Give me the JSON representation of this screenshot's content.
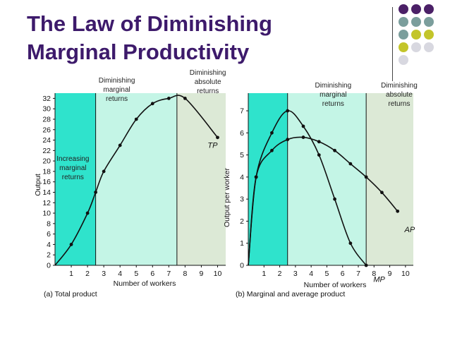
{
  "slide": {
    "title_line1": "The Law of Diminishing",
    "title_line2": "Marginal Productivity",
    "accent_colors": {
      "purple": "#4b2067",
      "teal": "#7b9e9c",
      "olive": "#c3c52a",
      "gray": "#d8d8e0",
      "title": "#3d1a6b"
    },
    "dot_pattern": [
      [
        "purple",
        "purple",
        "purple"
      ],
      [
        "teal",
        "teal",
        "teal"
      ],
      [
        "teal",
        "olive",
        "olive"
      ],
      [
        "olive",
        "gray",
        "gray"
      ],
      [
        "gray",
        "",
        ""
      ]
    ]
  },
  "chart_data": [
    {
      "id": "total-product",
      "type": "line",
      "caption": "(a) Total product",
      "xlabel": "Number of workers",
      "ylabel": "Output",
      "xlim": [
        0,
        10.5
      ],
      "ylim": [
        0,
        33
      ],
      "xticks": [
        1,
        2,
        3,
        4,
        5,
        6,
        7,
        8,
        9,
        10
      ],
      "yticks": [
        0,
        2,
        4,
        6,
        8,
        10,
        12,
        14,
        16,
        18,
        20,
        22,
        24,
        26,
        28,
        30,
        32
      ],
      "series": [
        {
          "name": "TP",
          "x": [
            1,
            2,
            2.5,
            3,
            4,
            5,
            6,
            7,
            8,
            10
          ],
          "y": [
            4,
            10,
            14,
            18,
            23,
            28,
            31,
            32,
            32,
            24.5
          ]
        }
      ],
      "series_label_pos": {
        "x": 10,
        "y": 22.5
      },
      "regions": [
        {
          "from": 0,
          "to": 2.5,
          "color": "#2fe3cc",
          "label": [
            "Increasing",
            "marginal",
            "returns"
          ],
          "label_x": 1.1,
          "label_y": 20
        },
        {
          "from": 2.5,
          "to": 7.5,
          "color": "#c4f5e6",
          "label": [
            "Diminishing",
            "marginal",
            "returns"
          ],
          "label_x": 3.8,
          "label_y": 35
        },
        {
          "from": 7.5,
          "to": 10.5,
          "color": "#dce9d6",
          "label": [
            "Diminishing",
            "absolute",
            "returns"
          ],
          "label_x": 9.4,
          "label_y": 36.5
        }
      ]
    },
    {
      "id": "marginal-average-product",
      "type": "line",
      "caption": "(b) Marginal and average product",
      "xlabel": "Number of workers",
      "ylabel": "Output per worker",
      "xlim": [
        0,
        10.5
      ],
      "ylim": [
        0,
        7.8
      ],
      "xticks": [
        1,
        2,
        3,
        4,
        5,
        6,
        7,
        8,
        9,
        10
      ],
      "yticks": [
        0,
        1,
        2,
        3,
        4,
        5,
        6,
        7
      ],
      "series": [
        {
          "name": "MP",
          "x": [
            0.5,
            1.5,
            2.5,
            3.5,
            4.5,
            5.5,
            6.5,
            7.5
          ],
          "y": [
            4,
            6,
            7,
            6.3,
            5,
            3,
            1,
            0
          ]
        },
        {
          "name": "AP",
          "x": [
            0.5,
            1.5,
            2.5,
            3.5,
            4.5,
            5.5,
            6.5,
            7.5,
            8.5,
            9.5
          ],
          "y": [
            4,
            5.2,
            5.7,
            5.8,
            5.6,
            5.2,
            4.6,
            4.0,
            3.3,
            2.45
          ]
        }
      ],
      "series_label_pos": [
        {
          "x": 8.7,
          "y": -0.75
        },
        {
          "x": 10.6,
          "y": 1.5
        }
      ],
      "regions": [
        {
          "from": 0,
          "to": 2.5,
          "color": "#2fe3cc",
          "label": [],
          "label_x": 0,
          "label_y": 0
        },
        {
          "from": 2.5,
          "to": 7.5,
          "color": "#c4f5e6",
          "label": [
            "Diminishing",
            "marginal",
            "returns"
          ],
          "label_x": 5.4,
          "label_y": 8.05
        },
        {
          "from": 7.5,
          "to": 10.5,
          "color": "#dce9d6",
          "label": [
            "Diminishing",
            "absolute",
            "returns"
          ],
          "label_x": 9.6,
          "label_y": 8.05
        }
      ]
    }
  ]
}
